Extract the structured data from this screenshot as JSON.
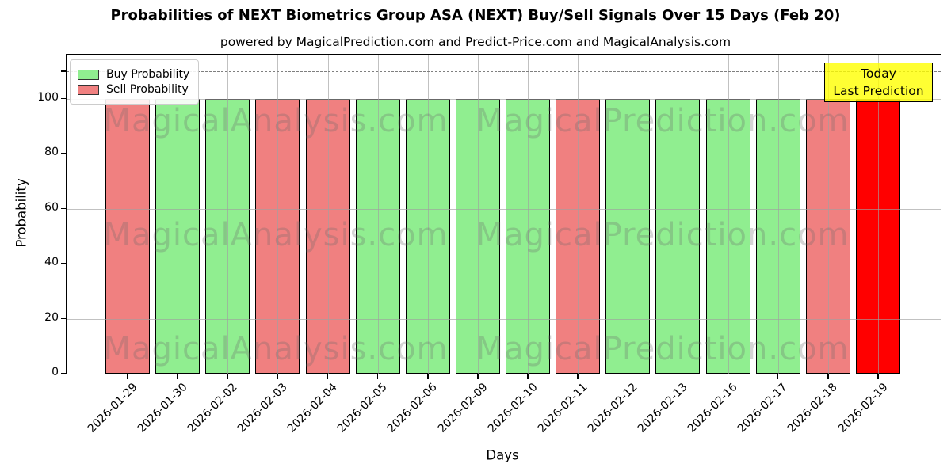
{
  "figure": {
    "title": "Probabilities of NEXT Biometrics Group ASA (NEXT) Buy/Sell Signals Over 15 Days (Feb 20)",
    "subtitle": "powered by MagicalPrediction.com and Predict-Price.com and MagicalAnalysis.com"
  },
  "axes": {
    "xlabel": "Days",
    "ylabel": "Probability"
  },
  "legend": {
    "items": [
      {
        "label": "Buy Probability",
        "color": "#90EE90"
      },
      {
        "label": "Sell Probability",
        "color": "#F08080"
      }
    ]
  },
  "annotation": {
    "line1": "Today",
    "line2": "Last Prediction",
    "bg_color": "#FFFF00"
  },
  "watermark": {
    "left": "MagicalAnalysis.com",
    "right": "MagicalPrediction.com"
  },
  "colors": {
    "buy": "#90EE90",
    "sell": "#F08080",
    "today": "#FF0000",
    "bar_edge": "#000000",
    "grid": "#a0a0a0",
    "dashed_line": "#7f7f7f"
  },
  "chart_data": {
    "type": "bar",
    "title": "Probabilities of NEXT Biometrics Group ASA (NEXT) Buy/Sell Signals Over 15 Days (Feb 20)",
    "xlabel": "Days",
    "ylabel": "Probability",
    "categories": [
      "2026-01-29",
      "2026-01-30",
      "2026-02-02",
      "2026-02-03",
      "2026-02-04",
      "2026-02-05",
      "2026-02-06",
      "2026-02-09",
      "2026-02-10",
      "2026-02-11",
      "2026-02-12",
      "2026-02-13",
      "2026-02-16",
      "2026-02-17",
      "2026-02-18",
      "2026-02-19"
    ],
    "series": [
      {
        "name": "Buy Probability",
        "color": "#90EE90",
        "values": [
          0,
          100,
          100,
          0,
          0,
          100,
          100,
          100,
          100,
          0,
          100,
          100,
          100,
          100,
          0,
          0
        ]
      },
      {
        "name": "Sell Probability",
        "color": "#F08080",
        "values": [
          100,
          0,
          0,
          100,
          100,
          0,
          0,
          0,
          0,
          100,
          0,
          0,
          0,
          0,
          100,
          0
        ]
      },
      {
        "name": "Today Last Prediction",
        "color": "#FF0000",
        "values": [
          0,
          0,
          0,
          0,
          0,
          0,
          0,
          0,
          0,
          0,
          0,
          0,
          0,
          0,
          0,
          100
        ]
      }
    ],
    "ylim": [
      0,
      116
    ],
    "yticks": [
      0,
      20,
      40,
      60,
      80,
      100
    ],
    "extra_unlabeled_ytick": 110,
    "dashed_line_y": 110,
    "grid": true,
    "legend_position": "upper left"
  }
}
